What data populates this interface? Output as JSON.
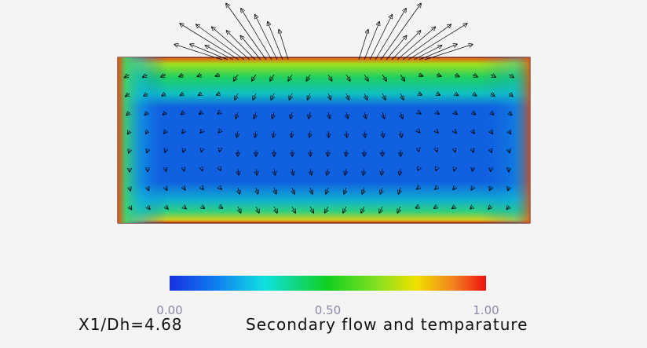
{
  "figure": {
    "caption_left": "X1/Dh=4.68",
    "caption": "Secondary flow and temparature",
    "colorbar": {
      "range": [
        0,
        1
      ],
      "ticks": [
        {
          "value": 0,
          "label": "0.00"
        },
        {
          "value": 0.5,
          "label": "0.50"
        },
        {
          "value": 1,
          "label": "1.00"
        }
      ]
    }
  }
}
